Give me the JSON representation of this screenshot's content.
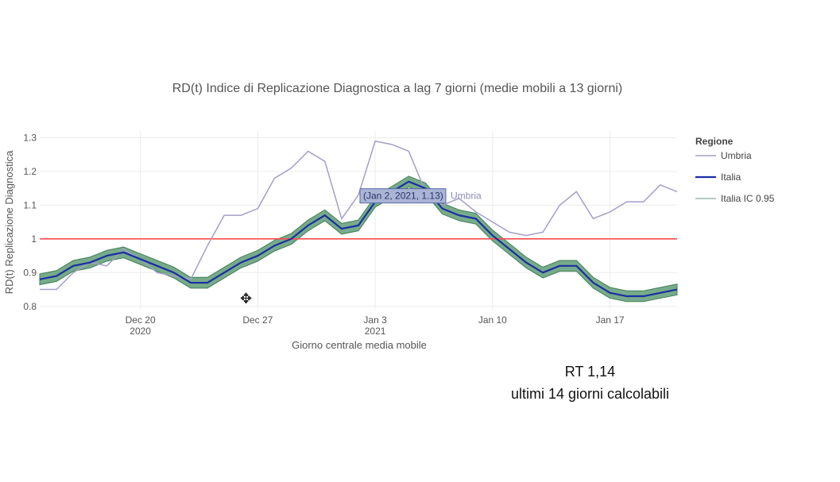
{
  "chart_data": {
    "type": "line",
    "title": "RD(t) Indice di Replicazione Diagnostica a lag 7 giorni (medie mobili a 13 giorni)",
    "xlabel": "Giorno centrale media mobile",
    "ylabel": "RD(t) Replicazione Diagnostica",
    "ylim": [
      0.79,
      1.32
    ],
    "yticks": [
      0.8,
      0.9,
      1,
      1.1,
      1.2,
      1.3
    ],
    "ytick_labels": [
      "0.8",
      "0.9",
      "1",
      "1.1",
      "1.2",
      "1.3"
    ],
    "x_dates": [
      "2020-12-14",
      "2020-12-15",
      "2020-12-16",
      "2020-12-17",
      "2020-12-18",
      "2020-12-19",
      "2020-12-20",
      "2020-12-21",
      "2020-12-22",
      "2020-12-23",
      "2020-12-24",
      "2020-12-25",
      "2020-12-26",
      "2020-12-27",
      "2020-12-28",
      "2020-12-29",
      "2020-12-30",
      "2020-12-31",
      "2021-01-01",
      "2021-01-02",
      "2021-01-03",
      "2021-01-04",
      "2021-01-05",
      "2021-01-06",
      "2021-01-07",
      "2021-01-08",
      "2021-01-09",
      "2021-01-10",
      "2021-01-11",
      "2021-01-12",
      "2021-01-13",
      "2021-01-14",
      "2021-01-15",
      "2021-01-16",
      "2021-01-17",
      "2021-01-18",
      "2021-01-19",
      "2021-01-20",
      "2021-01-21"
    ],
    "xticks": [
      {
        "date": "2020-12-20",
        "line1": "Dec 20",
        "line2": "2020"
      },
      {
        "date": "2020-12-27",
        "line1": "Dec 27",
        "line2": ""
      },
      {
        "date": "2021-01-03",
        "line1": "Jan 3",
        "line2": "2021"
      },
      {
        "date": "2021-01-10",
        "line1": "Jan 10",
        "line2": ""
      },
      {
        "date": "2021-01-17",
        "line1": "Jan 17",
        "line2": ""
      }
    ],
    "reference_line": {
      "y": 1.0,
      "color": "#ff4d4d"
    },
    "series": [
      {
        "name": "Umbria",
        "color": "#a39fc9",
        "values": [
          0.85,
          0.85,
          0.9,
          0.93,
          0.92,
          0.97,
          0.94,
          0.9,
          0.89,
          0.88,
          0.98,
          1.07,
          1.07,
          1.09,
          1.18,
          1.21,
          1.26,
          1.23,
          1.06,
          1.13,
          1.29,
          1.28,
          1.26,
          1.14,
          1.1,
          1.12,
          1.08,
          1.05,
          1.02,
          1.01,
          1.02,
          1.1,
          1.14,
          1.06,
          1.08,
          1.11,
          1.11,
          1.16,
          1.14
        ]
      },
      {
        "name": "Italia",
        "color": "#1a2fa3",
        "values": [
          0.88,
          0.89,
          0.92,
          0.93,
          0.95,
          0.96,
          0.94,
          0.92,
          0.9,
          0.87,
          0.87,
          0.9,
          0.93,
          0.95,
          0.98,
          1.0,
          1.04,
          1.07,
          1.03,
          1.04,
          1.11,
          1.14,
          1.17,
          1.15,
          1.09,
          1.07,
          1.06,
          1.01,
          0.97,
          0.93,
          0.9,
          0.92,
          0.92,
          0.87,
          0.84,
          0.83,
          0.83,
          0.84,
          0.85
        ]
      },
      {
        "name": "Italia IC 0.95",
        "color": "#5f9c74",
        "band_halfwidth": 0.016
      }
    ],
    "legend": {
      "title": "Regione",
      "position": "right"
    },
    "hover_label": {
      "text": "(Jan 2, 2021, 1.13)",
      "series": "Umbria",
      "date": "2021-01-02",
      "value": 1.13
    }
  },
  "caption": {
    "line1": "RT 1,14",
    "line2": "ultimi 14 giorni calcolabili"
  }
}
